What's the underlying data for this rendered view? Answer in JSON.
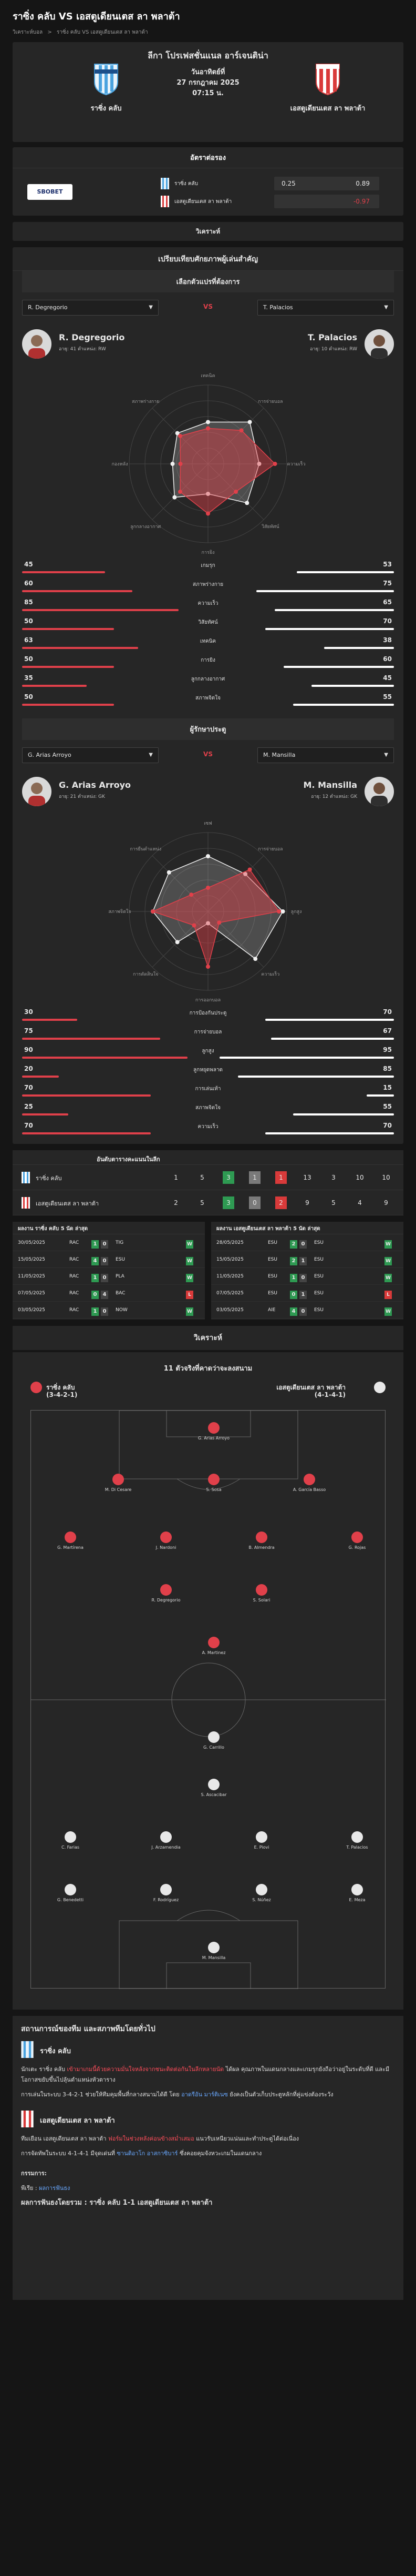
{
  "page_title": "ราซิ่ง คลับ VS เอสตูเดียนเตส ลา พลาต้า",
  "breadcrumbs": [
    "วิเคราะห์บอล",
    ">",
    "ราซิ่ง คลับ VS เอสตูเดียนเตส ลา พลาต้า"
  ],
  "match": {
    "competition": "ลีกา โปรเฟสชั่นแนล อาร์เจนติน่า",
    "date_line": "วันอาทิตย์ที่",
    "date": "27 กรกฎาคม 2025",
    "time": "07:15 น.",
    "home": "ราซิ่ง คลับ",
    "away": "เอสตูเดียนเตส ลา พลาต้า",
    "home_color": "#4aa3df",
    "away_color": "#d93a3a"
  },
  "odds": {
    "title": "อัตราต่อรอง",
    "bookmaker": "SBOBET",
    "rows": [
      {
        "team": "ราซิ่ง คลับ",
        "v1": "0.25",
        "v2": "0.89",
        "v2_color": "#ffffff"
      },
      {
        "team": "เอสตูเดียนเตส ลา พลาต้า",
        "v1": "",
        "v2": "-0.97",
        "v2_color": "#e0404a"
      }
    ]
  },
  "analysis_label": "วิเคราะห์",
  "compare": {
    "title": "เปรียบเทียบศักยภาพผู้เล่นสำคัญ",
    "group1": {
      "subtitle": "เลือกตัวแปรที่ต้องการ",
      "vs": "VS",
      "left_select": "R. Degregorio",
      "right_select": "T. Palacios",
      "left": {
        "name": "R. Degregorio",
        "age": "อายุ: 41",
        "pos_label": "ตำแหน่ง:",
        "pos": "RW"
      },
      "right": {
        "name": "T. Palacios",
        "age": "อายุ: 10",
        "pos_label": "ตำแหน่ง:",
        "pos": "RW"
      },
      "radar_labels": [
        "เทคนิค",
        "การจ่ายบอล",
        "ความเร็ว",
        "วิสัยทัศน์",
        "การยิง",
        "ลูกกลางอากาศ",
        "กองหลัง",
        "สภาพร่างกาย"
      ],
      "stats": [
        {
          "label": "เกมรุก",
          "l": 45,
          "r": 53
        },
        {
          "label": "สภาพร่างกาย",
          "l": 60,
          "r": 75
        },
        {
          "label": "ความเร็ว",
          "l": 85,
          "r": 65
        },
        {
          "label": "วิสัยทัศน์",
          "l": 50,
          "r": 70
        },
        {
          "label": "เทคนิค",
          "l": 63,
          "r": 38
        },
        {
          "label": "การยิง",
          "l": 50,
          "r": 60
        },
        {
          "label": "ลูกกลางอากาศ",
          "l": 35,
          "r": 45
        },
        {
          "label": "สภาพจิตใจ",
          "l": 50,
          "r": 55
        }
      ]
    },
    "group2": {
      "subtitle": "ผู้รักษาประตู",
      "vs": "VS",
      "left_select": "G. Arias Arroyo",
      "right_select": "M. Mansilla",
      "left": {
        "name": "G. Arias Arroyo",
        "age": "อายุ: 21",
        "pos_label": "ตำแหน่ง:",
        "pos": "GK"
      },
      "right": {
        "name": "M. Mansilla",
        "age": "อายุ: 12",
        "pos_label": "ตำแหน่ง:",
        "pos": "GK"
      },
      "radar_labels": [
        "เซฟ",
        "การจ่ายบอล",
        "ลูกสูง",
        "ความเร็ว",
        "การออกบอล",
        "การตัดสินใจ",
        "สภาพจิตใจ",
        "การยืนตำแหน่ง"
      ],
      "stats": [
        {
          "label": "การป้องกันประตู",
          "l": 30,
          "r": 70
        },
        {
          "label": "การจ่ายบอล",
          "l": 75,
          "r": 67
        },
        {
          "label": "ลูกสูง",
          "l": 90,
          "r": 95
        },
        {
          "label": "ลูกหยุดพลาด",
          "l": 20,
          "r": 85
        },
        {
          "label": "การเล่นเท้า",
          "l": 70,
          "r": 15
        },
        {
          "label": "สภาพจิตใจ",
          "l": 25,
          "r": 55
        },
        {
          "label": "ความเร็ว",
          "l": 70,
          "r": 70
        }
      ]
    }
  },
  "standings": {
    "title": "อันดับตารางคะแนนในลีก",
    "rows": [
      {
        "team": "ราซิ่ง คลับ",
        "cells": [
          "1",
          "5",
          "3",
          "1",
          "1",
          "13",
          "3",
          "10",
          "10"
        ]
      },
      {
        "team": "เอสตูเดียนเตส ลา พลาต้า",
        "cells": [
          "2",
          "5",
          "3",
          "0",
          "2",
          "9",
          "5",
          "4",
          "9"
        ]
      }
    ]
  },
  "last5": {
    "home_title": "ผลงาน ราซิ่ง คลับ 5 นัด ล่าสุด",
    "away_title": "ผลงาน เอสตูเดียนเตส ลา พลาต้า 5 นัด ล่าสุด",
    "home": [
      {
        "date": "30/05/2025",
        "t1": "RAC",
        "s1": "1",
        "s2": "0",
        "t2": "TIG",
        "res": "W"
      },
      {
        "date": "15/05/2025",
        "t1": "RAC",
        "s1": "4",
        "s2": "0",
        "t2": "ESU",
        "res": "W"
      },
      {
        "date": "11/05/2025",
        "t1": "RAC",
        "s1": "1",
        "s2": "0",
        "t2": "PLA",
        "res": "W"
      },
      {
        "date": "07/05/2025",
        "t1": "RAC",
        "s1": "0",
        "s2": "4",
        "t2": "BAC",
        "res": "L"
      },
      {
        "date": "03/05/2025",
        "t1": "RAC",
        "s1": "1",
        "s2": "0",
        "t2": "NOW",
        "res": "W"
      }
    ],
    "away": [
      {
        "date": "28/05/2025",
        "t1": "ESU",
        "s1": "2",
        "s2": "0",
        "t2": "ESU",
        "res": "W"
      },
      {
        "date": "15/05/2025",
        "t1": "ESU",
        "s1": "2",
        "s2": "1",
        "t2": "ESU",
        "res": "W"
      },
      {
        "date": "11/05/2025",
        "t1": "ESU",
        "s1": "1",
        "s2": "0",
        "t2": "ESU",
        "res": "W"
      },
      {
        "date": "07/05/2025",
        "t1": "ESU",
        "s1": "0",
        "s2": "1",
        "t2": "ESU",
        "res": "L"
      },
      {
        "date": "03/05/2025",
        "t1": "AIE",
        "s1": "4",
        "s2": "0",
        "t2": "ESU",
        "res": "W"
      }
    ]
  },
  "lineup": {
    "section_title": "วิเคราะห์",
    "title": "11 ตัวจริงที่คาดว่าจะลงสนาม",
    "home_name": "ราซิ่ง คลับ",
    "home_formation": "(3-4-2-1)",
    "away_name": "เอสตูเดียนเตส ลา พลาต้า",
    "away_formation": "(4-1-4-1)",
    "home_players": [
      {
        "name": "G. Arias Arroyo",
        "row": 0,
        "col": 3
      },
      {
        "name": "M. Di Cesare",
        "row": 1,
        "col": 1
      },
      {
        "name": "S. Sosa",
        "row": 1,
        "col": 3
      },
      {
        "name": "A. García Basso",
        "row": 1,
        "col": 5
      },
      {
        "name": "G. Martírena",
        "row": 2,
        "col": 0
      },
      {
        "name": "J. Nardoni",
        "row": 2,
        "col": 2
      },
      {
        "name": "B. Almendra",
        "row": 2,
        "col": 4
      },
      {
        "name": "G. Rojas",
        "row": 2,
        "col": 6
      },
      {
        "name": "R. Degregorio",
        "row": 3,
        "col": 2
      },
      {
        "name": "S. Solari",
        "row": 3,
        "col": 4
      },
      {
        "name": "A. Martinez",
        "row": 4,
        "col": 3
      }
    ],
    "away_players": [
      {
        "name": "G. Carrillo",
        "row": 4,
        "col": 3
      },
      {
        "name": "S. Ascacibar",
        "row": 3,
        "col": 3
      },
      {
        "name": "T. Palacios",
        "row": 2,
        "col": 6
      },
      {
        "name": "E. Piovi",
        "row": 2,
        "col": 4
      },
      {
        "name": "J. Arzamendia",
        "row": 2,
        "col": 2
      },
      {
        "name": "C. Farias",
        "row": 2,
        "col": 0
      },
      {
        "name": "E. Meza",
        "row": 1,
        "col": 6
      },
      {
        "name": "S. Núñez",
        "row": 1,
        "col": 4
      },
      {
        "name": "F. Rodríguez",
        "row": 1,
        "col": 2
      },
      {
        "name": "G. Benedetti",
        "row": 1,
        "col": 0
      },
      {
        "name": "M. Mansilla",
        "row": 0,
        "col": 3
      }
    ]
  },
  "analysis_text": {
    "title": "สถานการณ์ของทีม และสภาพทีมโดยทั่วไป",
    "home_name": "ราซิ่ง คลับ",
    "home_p1a": "นักเตะ ราซิ่ง คลับ ",
    "home_p1b": "เข้ามาเกมนี้ด้วยความมั่นใจหลังจากชนะติดต่อกันในลีกหลายนัด",
    "home_p1c": " ได้ผล คุณภาพในแดนกลางและเกมรุกยังถือว่าอยู่ในระดับที่ดี และมีโอกาสขยับขึ้นไปลุ้นตำแหน่งหัวตาราง",
    "home_p2a": "การเล่นในระบบ 3-4-2-1 ช่วยให้ทีมคุมพื้นที่กลางสนามได้ดี โดย ",
    "home_p2b": "อาดรีอัน มาร์ติเนซ",
    "home_p2c": " ยังคงเป็นตัวเก็บประตูหลักที่คู่แข่งต้องระวัง",
    "away_name": "เอสตูเดียนเตส ลา พลาต้า",
    "away_p1a": "ทีมเยือน เอสตูเดียนเตส ลา พลาต้า ",
    "away_p1b": "ฟอร์มในช่วงหลังค่อนข้างสม่ำเสมอ",
    "away_p1c": " แนวรับเหนียวแน่นและทำประตูได้ต่อเนื่อง",
    "away_p2a": "การจัดทัพในระบบ 4-1-4-1 มีจุดเด่นที่ ",
    "away_p2b": "ซานติอาโก อาสกาซิบาร์",
    "away_p2c": " ซึ่งคอยคุมจังหวะเกมในแดนกลาง",
    "summary_title": "กรรมการ:",
    "summary_a": "พีเรีย : ",
    "summary_b": "ผลการฟันธง",
    "prediction_label": "ผลการฟันธงโดยรวม : ",
    "prediction": "ราซิ่ง คลับ 1-1 เอสตูเดียนเตส ลา พลาต้า"
  }
}
